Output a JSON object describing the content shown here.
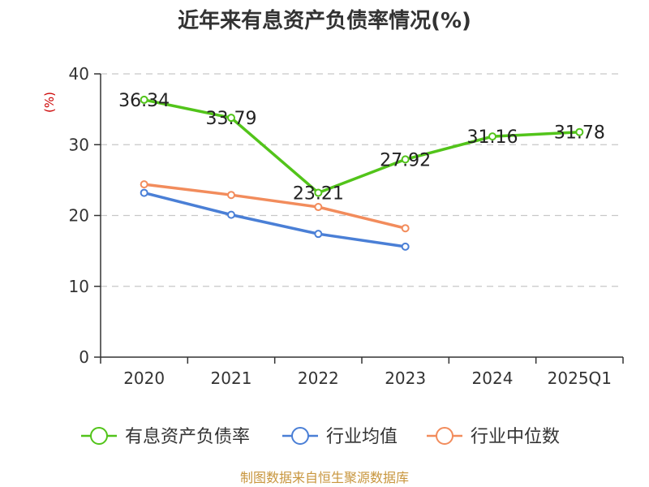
{
  "chart_data": {
    "type": "line",
    "title": "近年来有息资产负债率情况(%)",
    "ylabel": "(%)",
    "xlabel": "",
    "categories": [
      "2020",
      "2021",
      "2022",
      "2023",
      "2024",
      "2025Q1"
    ],
    "ylim": [
      0,
      40
    ],
    "yticks": [
      0,
      10,
      20,
      30,
      40
    ],
    "grid": true,
    "legend_position": "bottom",
    "series": [
      {
        "name": "有息资产负债率",
        "color": "#52c41a",
        "values": [
          36.34,
          33.79,
          23.21,
          27.92,
          31.16,
          31.78
        ],
        "labels": [
          "36.34",
          "33.79",
          "23.21",
          "27.92",
          "31.16",
          "31.78"
        ]
      },
      {
        "name": "行业均值",
        "color": "#4a7fd6",
        "values": [
          23.2,
          20.1,
          17.4,
          15.6,
          null,
          null
        ]
      },
      {
        "name": "行业中位数",
        "color": "#f28c5c",
        "values": [
          24.4,
          22.9,
          21.2,
          18.2,
          null,
          null
        ]
      }
    ]
  },
  "source": "制图数据来自恒生聚源数据库"
}
